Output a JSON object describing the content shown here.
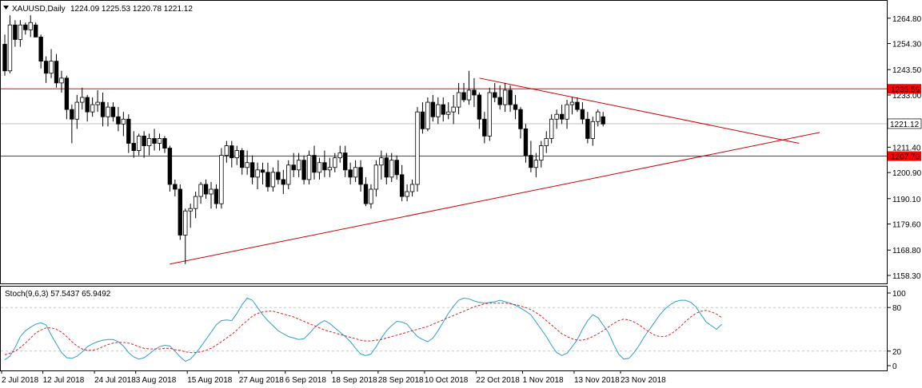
{
  "chart_data": [
    {
      "type": "candlestick",
      "symbol": "XAUUSD",
      "timeframe": "Daily",
      "header": {
        "title": "XAUUSD,Daily",
        "ohlc": "1224.09 1225.53 1220.78 1221.12"
      },
      "ylim": [
        1155,
        1272
      ],
      "y_ticks": [
        "1264.80",
        "1254.30",
        "1243.50",
        "1233.00",
        "1222.20",
        "1211.40",
        "1200.90",
        "1190.10",
        "1179.60",
        "1168.80",
        "1158.30"
      ],
      "x_ticks": [
        {
          "bar": 0,
          "label": "2 Jul 2018"
        },
        {
          "bar": 8,
          "label": "12 Jul 2018"
        },
        {
          "bar": 18,
          "label": "24 Jul 2018"
        },
        {
          "bar": 26,
          "label": "3 Aug 2018"
        },
        {
          "bar": 36,
          "label": "15 Aug 2018"
        },
        {
          "bar": 46,
          "label": "27 Aug 2018"
        },
        {
          "bar": 55,
          "label": "6 Sep 2018"
        },
        {
          "bar": 64,
          "label": "18 Sep 2018"
        },
        {
          "bar": 73,
          "label": "28 Sep 2018"
        },
        {
          "bar": 82,
          "label": "10 Oct 2018"
        },
        {
          "bar": 92,
          "label": "22 Oct 2018"
        },
        {
          "bar": 101,
          "label": "1 Nov 2018"
        },
        {
          "bar": 111,
          "label": "13 Nov 2018"
        },
        {
          "bar": 120,
          "label": "23 Nov 2018"
        }
      ],
      "current_price": {
        "value": 1221.12,
        "label": "1221.12"
      },
      "horizontal_levels": [
        {
          "value": 1235.56,
          "label": "1235.56",
          "color": "#ff0000"
        },
        {
          "value": 1207.7,
          "label": "1207.70",
          "color": "#ff0000"
        }
      ],
      "trendlines": [
        {
          "name": "",
          "from": {
            "bar": 32,
            "value": 1163.0
          },
          "to": {
            "bar": 158,
            "value": 1217.5
          },
          "color": "#cc0000"
        },
        {
          "name": "",
          "from": {
            "bar": 92,
            "value": 1240.0
          },
          "to": {
            "bar": 154,
            "value": 1213.0
          },
          "color": "#cc0000"
        }
      ],
      "candles": [
        [
          1254,
          1258,
          1241,
          1243
        ],
        [
          1243,
          1266,
          1242,
          1262
        ],
        [
          1262,
          1264,
          1253,
          1256
        ],
        [
          1256,
          1264,
          1253,
          1262
        ],
        [
          1262,
          1263,
          1258,
          1260
        ],
        [
          1260,
          1266,
          1257,
          1263
        ],
        [
          1262,
          1263,
          1257,
          1257
        ],
        [
          1257,
          1258,
          1244,
          1247
        ],
        [
          1247,
          1249,
          1238,
          1242
        ],
        [
          1242,
          1252,
          1240,
          1247
        ],
        [
          1247,
          1250,
          1236,
          1238
        ],
        [
          1238,
          1243,
          1234,
          1240
        ],
        [
          1240,
          1241,
          1223,
          1227
        ],
        [
          1227,
          1229,
          1213,
          1223
        ],
        [
          1223,
          1233,
          1219,
          1230
        ],
        [
          1230,
          1236,
          1227,
          1232
        ],
        [
          1232,
          1233,
          1222,
          1226
        ],
        [
          1226,
          1232,
          1224,
          1229
        ],
        [
          1229,
          1235,
          1226,
          1230
        ],
        [
          1230,
          1234,
          1220,
          1224
        ],
        [
          1224,
          1230,
          1220,
          1228
        ],
        [
          1228,
          1230,
          1222,
          1224
        ],
        [
          1224,
          1228,
          1218,
          1221
        ],
        [
          1221,
          1226,
          1216,
          1223
        ],
        [
          1223,
          1225,
          1209,
          1213
        ],
        [
          1213,
          1218,
          1207,
          1210
        ],
        [
          1210,
          1217,
          1208,
          1216
        ],
        [
          1216,
          1218,
          1207,
          1212
        ],
        [
          1212,
          1217,
          1208,
          1215
        ],
        [
          1215,
          1219,
          1210,
          1213
        ],
        [
          1213,
          1217,
          1210,
          1215
        ],
        [
          1215,
          1216,
          1209,
          1211
        ],
        [
          1211,
          1212,
          1193,
          1196
        ],
        [
          1196,
          1198,
          1191,
          1194
        ],
        [
          1194,
          1196,
          1173,
          1175
        ],
        [
          1175,
          1186,
          1163,
          1185
        ],
        [
          1185,
          1188,
          1178,
          1186
        ],
        [
          1186,
          1193,
          1182,
          1191
        ],
        [
          1191,
          1197,
          1188,
          1196
        ],
        [
          1196,
          1198,
          1190,
          1192
        ],
        [
          1192,
          1197,
          1186,
          1194
        ],
        [
          1194,
          1196,
          1186,
          1188
        ],
        [
          1188,
          1211,
          1186,
          1208
        ],
        [
          1208,
          1214,
          1205,
          1212
        ],
        [
          1212,
          1214,
          1203,
          1207
        ],
        [
          1207,
          1212,
          1204,
          1210
        ],
        [
          1210,
          1211,
          1200,
          1203
        ],
        [
          1203,
          1210,
          1200,
          1205
        ],
        [
          1205,
          1208,
          1196,
          1199
        ],
        [
          1199,
          1205,
          1194,
          1202
        ],
        [
          1202,
          1205,
          1196,
          1201
        ],
        [
          1201,
          1205,
          1193,
          1195
        ],
        [
          1195,
          1203,
          1193,
          1201
        ],
        [
          1201,
          1206,
          1196,
          1198
        ],
        [
          1198,
          1202,
          1192,
          1196
        ],
        [
          1196,
          1206,
          1194,
          1204
        ],
        [
          1204,
          1209,
          1199,
          1202
        ],
        [
          1202,
          1209,
          1199,
          1206
        ],
        [
          1206,
          1208,
          1196,
          1198
        ],
        [
          1198,
          1210,
          1196,
          1208
        ],
        [
          1208,
          1212,
          1198,
          1201
        ],
        [
          1201,
          1207,
          1198,
          1205
        ],
        [
          1205,
          1210,
          1199,
          1202
        ],
        [
          1202,
          1207,
          1199,
          1203
        ],
        [
          1203,
          1209,
          1201,
          1207
        ],
        [
          1207,
          1212,
          1205,
          1209
        ],
        [
          1209,
          1212,
          1199,
          1202
        ],
        [
          1202,
          1205,
          1196,
          1199
        ],
        [
          1199,
          1206,
          1197,
          1203
        ],
        [
          1203,
          1206,
          1193,
          1196
        ],
        [
          1196,
          1199,
          1187,
          1188
        ],
        [
          1188,
          1196,
          1186,
          1194
        ],
        [
          1194,
          1206,
          1191,
          1204
        ],
        [
          1204,
          1210,
          1198,
          1207
        ],
        [
          1207,
          1209,
          1196,
          1199
        ],
        [
          1199,
          1209,
          1197,
          1206
        ],
        [
          1206,
          1208,
          1198,
          1200
        ],
        [
          1200,
          1204,
          1189,
          1191
        ],
        [
          1191,
          1196,
          1189,
          1193
        ],
        [
          1193,
          1198,
          1191,
          1196
        ],
        [
          1196,
          1228,
          1193,
          1226
        ],
        [
          1226,
          1230,
          1217,
          1219
        ],
        [
          1219,
          1232,
          1218,
          1230
        ],
        [
          1230,
          1233,
          1222,
          1224
        ],
        [
          1224,
          1232,
          1221,
          1229
        ],
        [
          1229,
          1232,
          1222,
          1225
        ],
        [
          1225,
          1230,
          1223,
          1226
        ],
        [
          1226,
          1233,
          1221,
          1228
        ],
        [
          1228,
          1238,
          1225,
          1234
        ],
        [
          1234,
          1238,
          1230,
          1231
        ],
        [
          1231,
          1243,
          1229,
          1235
        ],
        [
          1235,
          1240,
          1228,
          1233
        ],
        [
          1233,
          1234,
          1219,
          1223
        ],
        [
          1223,
          1226,
          1213,
          1216
        ],
        [
          1216,
          1236,
          1214,
          1234
        ],
        [
          1234,
          1238,
          1230,
          1232
        ],
        [
          1232,
          1237,
          1227,
          1229
        ],
        [
          1229,
          1238,
          1226,
          1235
        ],
        [
          1235,
          1237,
          1226,
          1229
        ],
        [
          1229,
          1233,
          1223,
          1227
        ],
        [
          1227,
          1228,
          1215,
          1219
        ],
        [
          1219,
          1221,
          1205,
          1208
        ],
        [
          1208,
          1214,
          1201,
          1203
        ],
        [
          1203,
          1209,
          1199,
          1206
        ],
        [
          1206,
          1214,
          1203,
          1212
        ],
        [
          1212,
          1218,
          1209,
          1215
        ],
        [
          1215,
          1225,
          1213,
          1223
        ],
        [
          1223,
          1227,
          1219,
          1225
        ],
        [
          1225,
          1229,
          1221,
          1223
        ],
        [
          1223,
          1231,
          1219,
          1229
        ],
        [
          1229,
          1232,
          1225,
          1230
        ],
        [
          1230,
          1232,
          1226,
          1227
        ],
        [
          1227,
          1230,
          1221,
          1223
        ],
        [
          1223,
          1226,
          1213,
          1215
        ],
        [
          1215,
          1224,
          1212,
          1222
        ],
        [
          1222,
          1227,
          1220,
          1226
        ],
        [
          1224,
          1226,
          1220,
          1221
        ]
      ]
    },
    {
      "type": "line",
      "title": "Stoch(9,6,3) 57.5437 65.9492",
      "ylim": [
        0,
        100
      ],
      "y_ticks": [
        "100",
        "80",
        "20",
        "0"
      ],
      "levels": [
        80,
        20
      ],
      "series": [
        {
          "name": "",
          "color": "#2ea0c8",
          "dash": false,
          "values": [
            8,
            13,
            25,
            40,
            48,
            53,
            57,
            59,
            56,
            42,
            30,
            18,
            11,
            10,
            13,
            19,
            26,
            30,
            33,
            35,
            36,
            36,
            33,
            27,
            18,
            12,
            9,
            11,
            16,
            22,
            26,
            28,
            27,
            20,
            12,
            6,
            9,
            17,
            26,
            36,
            46,
            56,
            62,
            63,
            62,
            72,
            84,
            93,
            90,
            80,
            70,
            62,
            55,
            48,
            44,
            40,
            38,
            36,
            37,
            44,
            52,
            58,
            62,
            58,
            52,
            46,
            40,
            33,
            24,
            16,
            14,
            16,
            26,
            38,
            48,
            55,
            61,
            60,
            57,
            48,
            40,
            36,
            33,
            38,
            48,
            60,
            72,
            82,
            90,
            93,
            92,
            89,
            87,
            86,
            87,
            88,
            90,
            88,
            86,
            83,
            79,
            75,
            70,
            60,
            50,
            40,
            28,
            18,
            14,
            17,
            26,
            36,
            50,
            62,
            70,
            66,
            56,
            46,
            30,
            16,
            9,
            10,
            18,
            28,
            40,
            50,
            60,
            70,
            78,
            84,
            88,
            90,
            90,
            87,
            81,
            70,
            60,
            55,
            50,
            57
          ]
        },
        {
          "name": "",
          "color": "#dd2222",
          "dash": true,
          "values": [
            15,
            17,
            20,
            25,
            31,
            38,
            45,
            49,
            52,
            52,
            50,
            46,
            40,
            33,
            27,
            23,
            21,
            21,
            23,
            26,
            29,
            31,
            32,
            32,
            31,
            29,
            26,
            24,
            23,
            23,
            23,
            24,
            24,
            22,
            21,
            19,
            18,
            18,
            19,
            21,
            24,
            28,
            33,
            38,
            43,
            49,
            56,
            62,
            68,
            72,
            74,
            75,
            75,
            73,
            71,
            69,
            67,
            64,
            61,
            58,
            55,
            52,
            49,
            47,
            45,
            43,
            41,
            39,
            37,
            35,
            34,
            34,
            35,
            36,
            38,
            40,
            42,
            44,
            46,
            48,
            50,
            52,
            54,
            57,
            60,
            63,
            66,
            69,
            72,
            75,
            78,
            81,
            83,
            85,
            86,
            86,
            86,
            86,
            85,
            84,
            82,
            80,
            77,
            73,
            68,
            62,
            56,
            50,
            44,
            40,
            37,
            35,
            35,
            37,
            40,
            44,
            48,
            53,
            58,
            62,
            64,
            63,
            60,
            56,
            51,
            46,
            42,
            40,
            40,
            43,
            48,
            54,
            61,
            67,
            72,
            75,
            76,
            74,
            71,
            66
          ]
        }
      ]
    }
  ]
}
